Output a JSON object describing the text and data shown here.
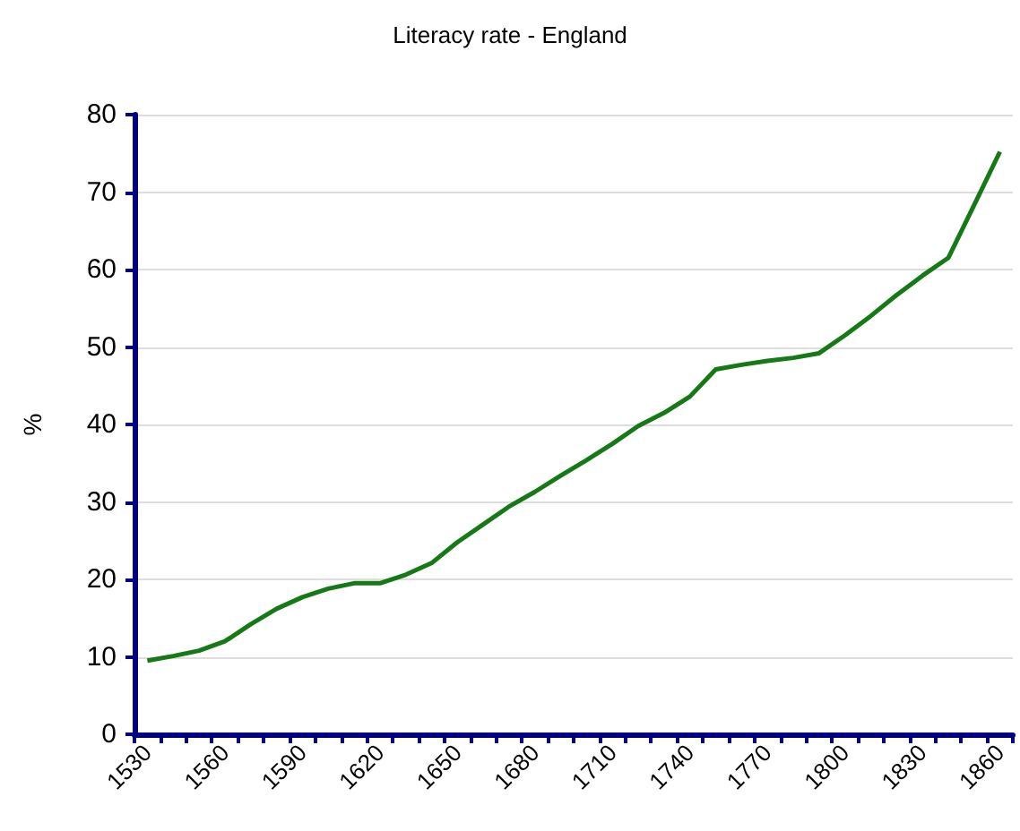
{
  "chart_data": {
    "type": "line",
    "title": "Literacy rate - England",
    "ylabel": "%",
    "categories": [
      "1530",
      null,
      null,
      "1560",
      null,
      null,
      "1590",
      null,
      null,
      "1620",
      null,
      null,
      "1650",
      null,
      null,
      "1680",
      null,
      null,
      "1710",
      null,
      null,
      "1740",
      null,
      null,
      "1770",
      null,
      null,
      "1800",
      null,
      null,
      "1830",
      null,
      null,
      "1860"
    ],
    "series": [
      {
        "color": "#157a15",
        "values": [
          9.5,
          10.1,
          10.8,
          12,
          14.2,
          16.2,
          17.7,
          18.8,
          19.5,
          19.5,
          20.6,
          22.1,
          24.8,
          27.1,
          29.4,
          31.3,
          33.4,
          35.4,
          37.5,
          39.8,
          41.5,
          43.6,
          47.1,
          47.7,
          48.2,
          48.6,
          49.2,
          51.5,
          54,
          56.7,
          59.2,
          61.5,
          68.3,
          75.2
        ]
      }
    ],
    "ylim": [
      0,
      80
    ],
    "yticks": [
      0,
      10,
      20,
      30,
      40,
      50,
      60,
      70,
      80
    ],
    "grid": "y",
    "marker": "none",
    "line_style": "solid"
  }
}
